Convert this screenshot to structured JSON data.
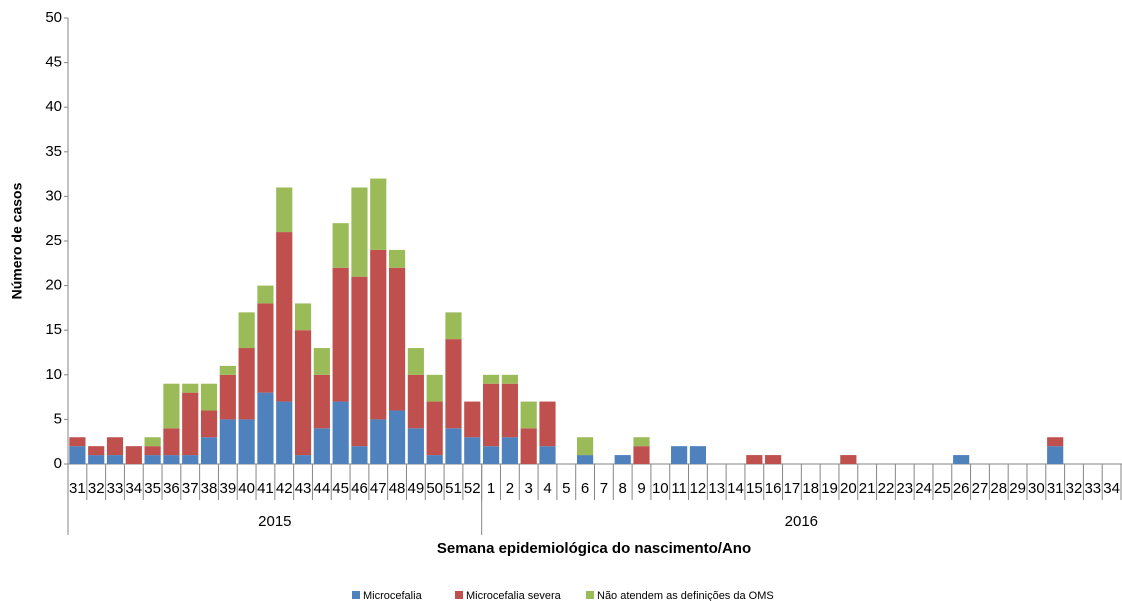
{
  "chart_data": {
    "type": "stacked_bar",
    "y_label": "Número de casos",
    "x_label": "Semana epidemiológica do nascimento/Ano",
    "groups": [
      {
        "name": "2015",
        "categories": [
          "31",
          "32",
          "33",
          "34",
          "35",
          "36",
          "37",
          "38",
          "39",
          "40",
          "41",
          "42",
          "43",
          "44",
          "45",
          "46",
          "47",
          "48",
          "49",
          "50",
          "51",
          "52"
        ]
      },
      {
        "name": "2016",
        "categories": [
          "1",
          "2",
          "3",
          "4",
          "5",
          "6",
          "7",
          "8",
          "9",
          "10",
          "11",
          "12",
          "13",
          "14",
          "15",
          "16",
          "17",
          "18",
          "19",
          "20",
          "21",
          "22",
          "23",
          "24",
          "25",
          "26",
          "27",
          "28",
          "29",
          "30",
          "31",
          "32",
          "33",
          "34"
        ]
      }
    ],
    "series": [
      {
        "name": "Microcefalia",
        "color": "#4f81bd",
        "values": [
          2,
          1,
          1,
          0,
          1,
          1,
          1,
          3,
          5,
          5,
          8,
          7,
          1,
          4,
          7,
          2,
          5,
          6,
          4,
          1,
          4,
          3,
          2,
          3,
          0,
          2,
          0,
          1,
          0,
          1,
          0,
          0,
          2,
          2,
          0,
          0,
          0,
          0,
          0,
          0,
          0,
          0,
          0,
          0,
          0,
          0,
          0,
          1,
          0,
          0,
          0,
          0,
          2,
          0,
          0,
          0
        ]
      },
      {
        "name": "Microcefalia severa",
        "color": "#c0504d",
        "values": [
          1,
          1,
          2,
          2,
          1,
          3,
          7,
          3,
          5,
          8,
          10,
          19,
          14,
          6,
          15,
          19,
          19,
          16,
          6,
          6,
          10,
          4,
          7,
          6,
          4,
          5,
          0,
          0,
          0,
          0,
          2,
          0,
          0,
          0,
          0,
          0,
          1,
          1,
          0,
          0,
          0,
          1,
          0,
          0,
          0,
          0,
          0,
          0,
          0,
          0,
          0,
          0,
          1,
          0,
          0,
          0
        ]
      },
      {
        "name": "Não atendem as definições da OMS",
        "color": "#9bbb59",
        "values": [
          0,
          0,
          0,
          0,
          1,
          5,
          1,
          3,
          1,
          4,
          2,
          5,
          3,
          3,
          5,
          10,
          8,
          2,
          3,
          3,
          3,
          0,
          1,
          1,
          3,
          0,
          0,
          2,
          0,
          0,
          1,
          0,
          0,
          0,
          0,
          0,
          0,
          0,
          0,
          0,
          0,
          0,
          0,
          0,
          0,
          0,
          0,
          0,
          0,
          0,
          0,
          0,
          0,
          0,
          0,
          0
        ]
      }
    ],
    "ylim": [
      0,
      50
    ],
    "yticks": [
      0,
      5,
      10,
      15,
      20,
      25,
      30,
      35,
      40,
      45,
      50
    ],
    "legend": "bottom"
  }
}
